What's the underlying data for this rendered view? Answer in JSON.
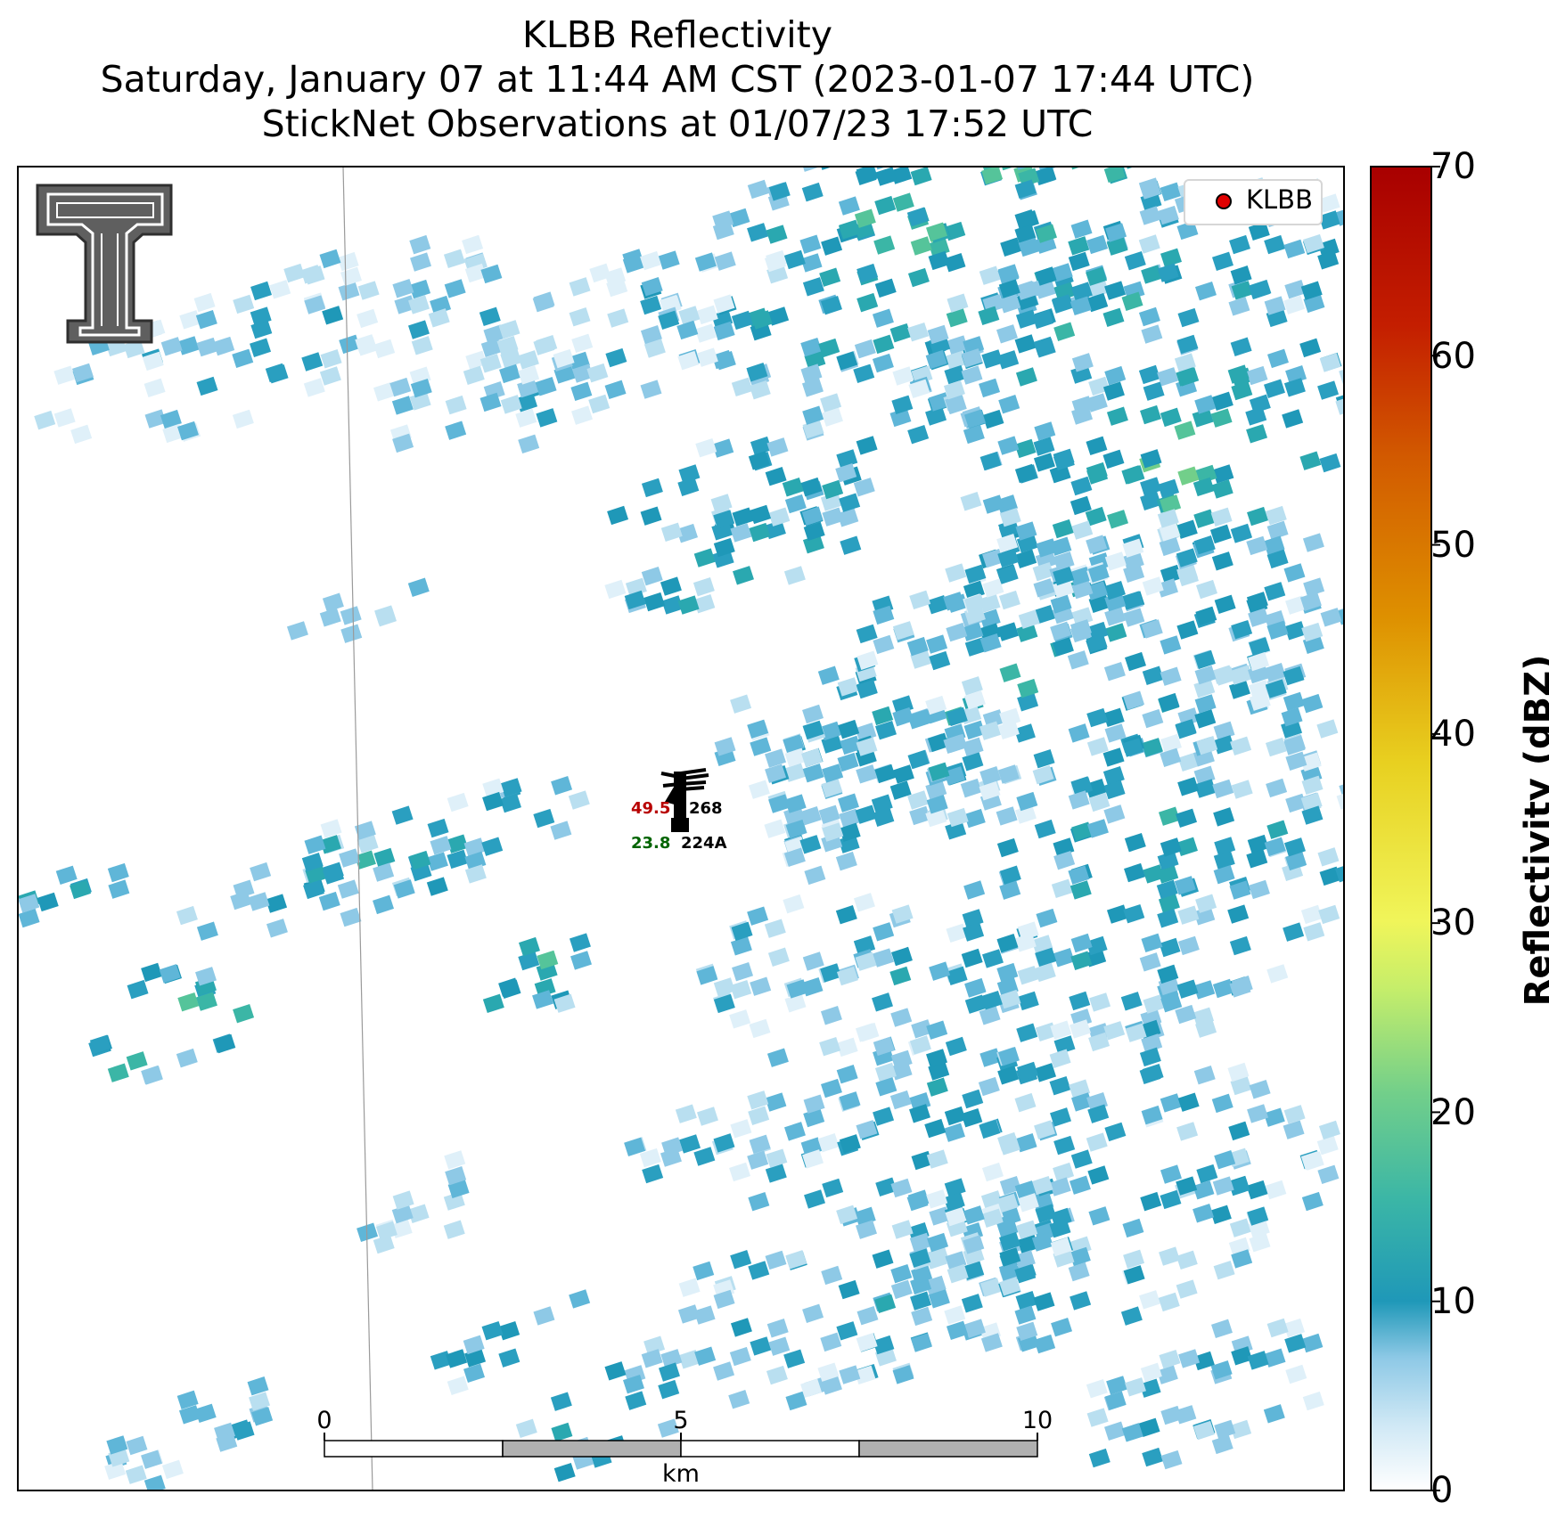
{
  "title": {
    "line1": "KLBB Reflectivity",
    "line2": "Saturday, January 07 at 11:44 AM CST (2023-01-07 17:44 UTC)",
    "line3": "StickNet Observations at 01/07/23 17:52 UTC"
  },
  "legend": {
    "label": "KLBB",
    "marker_color": "#e00000"
  },
  "colorbar": {
    "title": "Reflectivity (dBZ)",
    "ticks": [
      "0",
      "10",
      "20",
      "30",
      "40",
      "50",
      "60",
      "70"
    ],
    "min": 0,
    "max": 70,
    "stops": [
      "#ffffff",
      "#cfe8f5",
      "#8ec9e6",
      "#1f98b8",
      "#3bb6a6",
      "#72cf8a",
      "#c6ee6a",
      "#f0f55a",
      "#e8d020",
      "#de9000",
      "#d25a00",
      "#c41e00",
      "#a80000"
    ]
  },
  "scale_bar": {
    "labels": [
      "0",
      "5",
      "10"
    ],
    "unit": "km"
  },
  "stations": [
    {
      "temperature": "49.5",
      "id": "268"
    },
    {
      "dewpoint": "23.8",
      "id": "224A"
    }
  ],
  "logo": {
    "name": "Texas Tech Double T"
  }
}
